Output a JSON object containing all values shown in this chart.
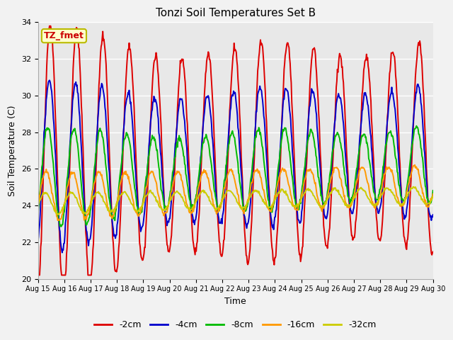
{
  "title": "Tonzi Soil Temperatures Set B",
  "xlabel": "Time",
  "ylabel": "Soil Temperature (C)",
  "ylim": [
    20,
    34
  ],
  "yticks": [
    20,
    22,
    24,
    26,
    28,
    30,
    32,
    34
  ],
  "fig_bg_color": "#f2f2f2",
  "plot_bg_color": "#e8e8e8",
  "annotation_text": "TZ_fmet",
  "annotation_bg": "#ffffcc",
  "annotation_border": "#bbbb00",
  "legend_labels": [
    "-2cm",
    "-4cm",
    "-8cm",
    "-16cm",
    "-32cm"
  ],
  "legend_colors": [
    "#dd0000",
    "#0000cc",
    "#00bb00",
    "#ff9900",
    "#cccc00"
  ],
  "line_width": 1.4,
  "n_points": 720
}
